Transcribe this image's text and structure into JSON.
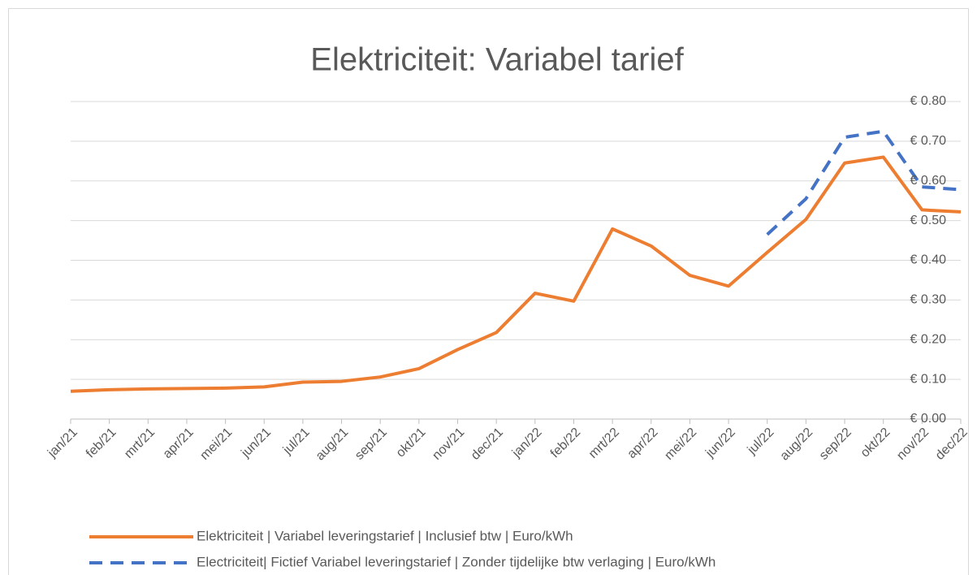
{
  "chart_data": {
    "type": "line",
    "title": "Elektriciteit: Variabel tarief",
    "categories": [
      "jan/21",
      "feb/21",
      "mrt/21",
      "apr/21",
      "mei/21",
      "jun/21",
      "jul/21",
      "aug/21",
      "sep/21",
      "okt/21",
      "nov/21",
      "dec/21",
      "jan/22",
      "feb/22",
      "mrt/22",
      "apr/22",
      "mei/22",
      "jun/22",
      "jul/22",
      "aug/22",
      "sep/22",
      "okt/22",
      "nov/22",
      "dec/22"
    ],
    "series": [
      {
        "name": "Elektriciteit | Variabel leveringstarief | Inclusief btw | Euro/kWh",
        "color": "#ed7d31",
        "dash": false,
        "values": [
          0.07,
          0.074,
          0.076,
          0.077,
          0.078,
          0.081,
          0.093,
          0.095,
          0.106,
          0.127,
          0.175,
          0.218,
          0.317,
          0.297,
          0.479,
          0.436,
          0.362,
          0.335,
          0.42,
          0.503,
          0.645,
          0.66,
          0.527,
          0.522
        ]
      },
      {
        "name": "Electriciteit| Fictief Variabel leveringstarief | Zonder tijdelijke btw verlaging | Euro/kWh",
        "color": "#4472c4",
        "dash": true,
        "values": [
          null,
          null,
          null,
          null,
          null,
          null,
          null,
          null,
          null,
          null,
          null,
          null,
          null,
          null,
          null,
          null,
          null,
          null,
          0.465,
          0.555,
          0.71,
          0.725,
          0.585,
          0.578
        ]
      }
    ],
    "ylim": [
      0,
      0.8
    ],
    "yticks": [
      {
        "value": 0,
        "label": "€ 0.00"
      },
      {
        "value": 0.1,
        "label": "€ 0.10"
      },
      {
        "value": 0.2,
        "label": "€ 0.20"
      },
      {
        "value": 0.3,
        "label": "€ 0.30"
      },
      {
        "value": 0.4,
        "label": "€ 0.40"
      },
      {
        "value": 0.5,
        "label": "€ 0.50"
      },
      {
        "value": 0.6,
        "label": "€ 0.60"
      },
      {
        "value": 0.7,
        "label": "€ 0.70"
      },
      {
        "value": 0.8,
        "label": "€ 0.80"
      }
    ],
    "grid": true,
    "legend": "bottom"
  }
}
